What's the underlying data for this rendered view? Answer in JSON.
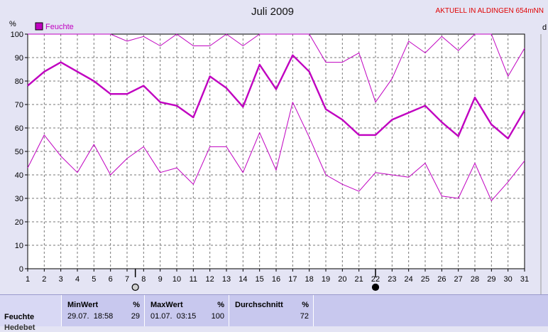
{
  "chart_data": {
    "type": "line",
    "title": "Juli 2009",
    "station_note": "AKTUELL IN ALDINGEN 654mNN",
    "ylabel": "%",
    "right_axis_label": "d",
    "legend": [
      {
        "name": "Feuchte",
        "color": "#c000c0"
      }
    ],
    "x": [
      1,
      2,
      3,
      4,
      5,
      6,
      7,
      8,
      9,
      10,
      11,
      12,
      13,
      14,
      15,
      16,
      17,
      18,
      19,
      20,
      21,
      22,
      23,
      24,
      25,
      26,
      27,
      28,
      29,
      30,
      31
    ],
    "xlim": [
      1,
      31
    ],
    "ylim": [
      0,
      100
    ],
    "yticks": [
      0,
      10,
      20,
      30,
      40,
      50,
      60,
      70,
      80,
      90,
      100
    ],
    "grid": true,
    "series": [
      {
        "name": "Feuchte max",
        "stroke": "#c000c0",
        "width": 1,
        "values": [
          100,
          100,
          100,
          100,
          100,
          100,
          97,
          99,
          95,
          100,
          95,
          95,
          100,
          95,
          100,
          100,
          100,
          100,
          88,
          88,
          92,
          71,
          81,
          97,
          92,
          99,
          93,
          100,
          100,
          82,
          94
        ]
      },
      {
        "name": "Feuchte",
        "stroke": "#c000c0",
        "width": 2.4,
        "values": [
          78,
          84,
          88,
          84,
          80,
          74.5,
          74.5,
          78,
          71,
          69.5,
          64.5,
          82,
          77,
          69,
          87,
          76.5,
          91,
          84,
          68,
          63.5,
          57,
          57,
          63.5,
          66.5,
          69.5,
          62.5,
          56.5,
          73,
          61.5,
          55.5,
          67.5
        ]
      },
      {
        "name": "Feuchte min",
        "stroke": "#c000c0",
        "width": 1,
        "values": [
          43,
          57,
          48,
          41,
          53,
          40,
          47,
          52,
          41,
          43,
          36,
          52,
          52,
          41,
          58,
          42,
          71,
          56,
          40,
          36,
          33,
          41,
          40,
          39,
          45,
          31,
          30,
          45,
          29,
          37,
          46
        ]
      }
    ],
    "markers": [
      {
        "day": 7.5,
        "type": "moon-open"
      },
      {
        "day": 22,
        "type": "moon-filled"
      }
    ]
  },
  "stats": {
    "label": "Feuchte",
    "label2": "Hedebet",
    "min": {
      "title": "MinWert",
      "unit": "%",
      "time": "29.07.  18:58",
      "value": "29"
    },
    "max": {
      "title": "MaxWert",
      "unit": "%",
      "time": "01.07.  03:15",
      "value": "100"
    },
    "avg": {
      "title": "Durchschnitt",
      "unit": "%",
      "value": "72"
    }
  }
}
